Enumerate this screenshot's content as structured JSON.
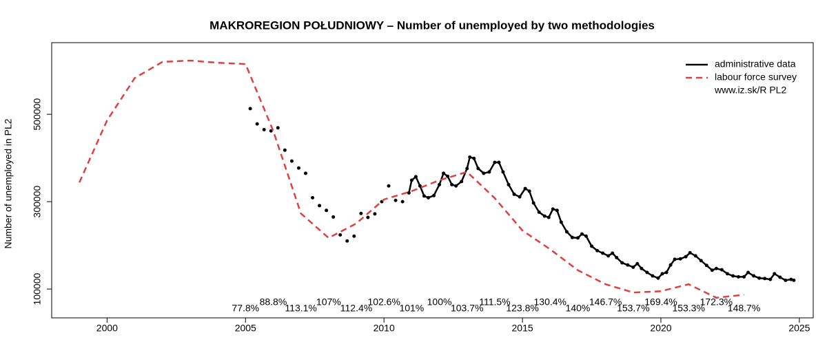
{
  "chart_data": {
    "type": "line",
    "title": "MAKROREGION POŁUDNIOWY – Number of unemployed  by two methodologies",
    "y_label": "Number of unemployed  in PL2",
    "xlim": [
      1998,
      2025.5
    ],
    "xticks": [
      2000,
      2005,
      2010,
      2015,
      2020,
      2025
    ],
    "ylim": [
      34000,
      664000
    ],
    "yticks": [
      100000,
      300000,
      500000
    ],
    "legend": "topright",
    "legend_note": "www.iz.sk/R PL2",
    "series": [
      {
        "name": "administrative data",
        "color": "#000000",
        "style": "solid-points",
        "x": [
          2005.17,
          2005.42,
          2005.67,
          2005.92,
          2006.17,
          2006.42,
          2006.67,
          2006.92,
          2007.17,
          2007.42,
          2007.67,
          2007.92,
          2008.17,
          2008.42,
          2008.67,
          2008.92,
          2009.17,
          2009.42,
          2009.67,
          2009.92,
          2010.17,
          2010.42,
          2010.67,
          2010.9,
          2011.0,
          2011.15,
          2011.3,
          2011.45,
          2011.6,
          2011.8,
          2012.0,
          2012.15,
          2012.3,
          2012.45,
          2012.6,
          2012.8,
          2013.0,
          2013.1,
          2013.25,
          2013.4,
          2013.6,
          2013.8,
          2014.0,
          2014.15,
          2014.3,
          2014.5,
          2014.7,
          2014.9,
          2015.1,
          2015.25,
          2015.4,
          2015.6,
          2015.8,
          2015.95,
          2016.1,
          2016.25,
          2016.4,
          2016.6,
          2016.8,
          2017.0,
          2017.15,
          2017.3,
          2017.5,
          2017.7,
          2017.9,
          2018.1,
          2018.25,
          2018.4,
          2018.6,
          2018.8,
          2019.0,
          2019.15,
          2019.3,
          2019.5,
          2019.7,
          2019.9,
          2020.05,
          2020.2,
          2020.35,
          2020.5,
          2020.7,
          2020.9,
          2021.05,
          2021.25,
          2021.45,
          2021.65,
          2021.85,
          2022.0,
          2022.2,
          2022.4,
          2022.6,
          2022.8,
          2023.0,
          2023.15,
          2023.35,
          2023.55,
          2023.75,
          2023.95,
          2024.1,
          2024.3,
          2024.5,
          2024.7,
          2024.8
        ],
        "values": [
          513000,
          478000,
          465000,
          462000,
          469000,
          418000,
          393000,
          377000,
          365000,
          309000,
          291000,
          280000,
          265000,
          224000,
          210000,
          221000,
          273000,
          264000,
          272000,
          300000,
          336000,
          303000,
          300000,
          320000,
          349000,
          357000,
          336000,
          313000,
          309000,
          314000,
          339000,
          365000,
          358000,
          339000,
          336000,
          346000,
          376000,
          402000,
          399000,
          376000,
          365000,
          368000,
          390000,
          390000,
          368000,
          339000,
          317000,
          311000,
          330000,
          324000,
          297000,
          276000,
          267000,
          264000,
          283000,
          280000,
          253000,
          231000,
          218000,
          217000,
          226000,
          221000,
          198000,
          188000,
          182000,
          176000,
          182000,
          172000,
          160000,
          155000,
          150000,
          158000,
          147000,
          138000,
          130000,
          125000,
          135000,
          138000,
          155000,
          168000,
          169000,
          174000,
          183000,
          176000,
          165000,
          154000,
          143000,
          147000,
          144000,
          135000,
          130000,
          128000,
          128000,
          138000,
          130000,
          125000,
          124000,
          122000,
          135000,
          127000,
          120000,
          122000,
          120000
        ]
      },
      {
        "name": "labour force survey",
        "color": "#df3f3f",
        "style": "dashed",
        "x": [
          1999,
          2000,
          2001,
          2002,
          2003,
          2004,
          2005,
          2006,
          2007,
          2008,
          2009,
          2010,
          2011,
          2012,
          2013,
          2014,
          2015,
          2016,
          2017,
          2018,
          2019,
          2020,
          2021,
          2022,
          2023
        ],
        "values": [
          344000,
          486000,
          583000,
          620000,
          623000,
          618000,
          615000,
          462000,
          273000,
          217000,
          250000,
          305000,
          324000,
          349000,
          368000,
          308000,
          234000,
          191000,
          143000,
          111000,
          92000,
          95000,
          111000,
          80000,
          87000
        ]
      }
    ],
    "ratio": {
      "x": [
        2005,
        2006,
        2007,
        2008,
        2009,
        2010,
        2011,
        2012,
        2013,
        2014,
        2015,
        2016,
        2017,
        2018,
        2019,
        2020,
        2021,
        2022,
        2023
      ],
      "values": [
        77.8,
        88.8,
        113.1,
        107,
        112.4,
        102.6,
        101,
        100,
        103.7,
        111.5,
        123.8,
        130.4,
        140,
        146.7,
        153.7,
        169.4,
        153.3,
        172.3,
        148.7
      ],
      "value_labels": [
        "77.8%",
        "88.8%",
        "113.1%",
        "107%",
        "112.4%",
        "102.6%",
        "101%",
        "100%",
        "103.7%",
        "111.5%",
        "123.8%",
        "130.4%",
        "140%",
        "146.7%",
        "153.7%",
        "169.4%",
        "153.3%",
        "172.3%",
        "148.7%"
      ]
    }
  }
}
